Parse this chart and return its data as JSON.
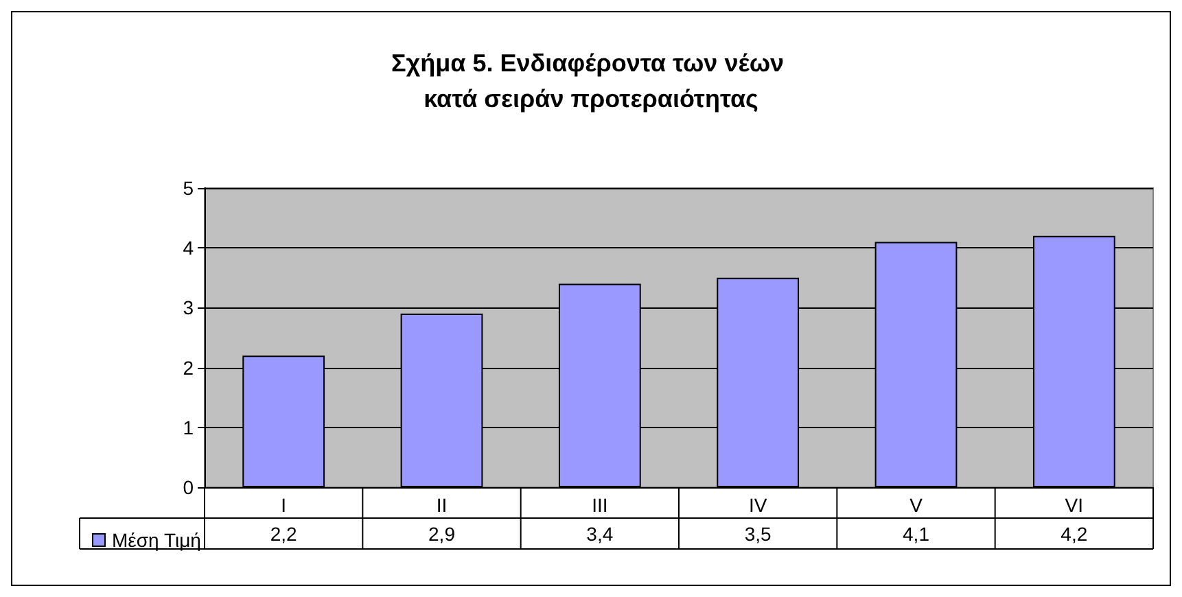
{
  "chart_data": {
    "type": "bar",
    "title": "Σχήμα 5. Ενδιαφέροντα των νέων κατά σειράν προτεραιότητας",
    "categories": [
      "I",
      "II",
      "III",
      "IV",
      "V",
      "VI"
    ],
    "series": [
      {
        "name": "Μέση Τιμή",
        "color": "#9999ff",
        "values": [
          2.2,
          2.9,
          3.4,
          3.5,
          4.1,
          4.2
        ],
        "value_labels": [
          "2,2",
          "2,9",
          "3,4",
          "3,5",
          "4,1",
          "4,2"
        ]
      }
    ],
    "ylim": [
      0,
      5
    ],
    "yticks": [
      0,
      1,
      2,
      3,
      4,
      5
    ],
    "grid": "y",
    "legend": "bottom left"
  }
}
